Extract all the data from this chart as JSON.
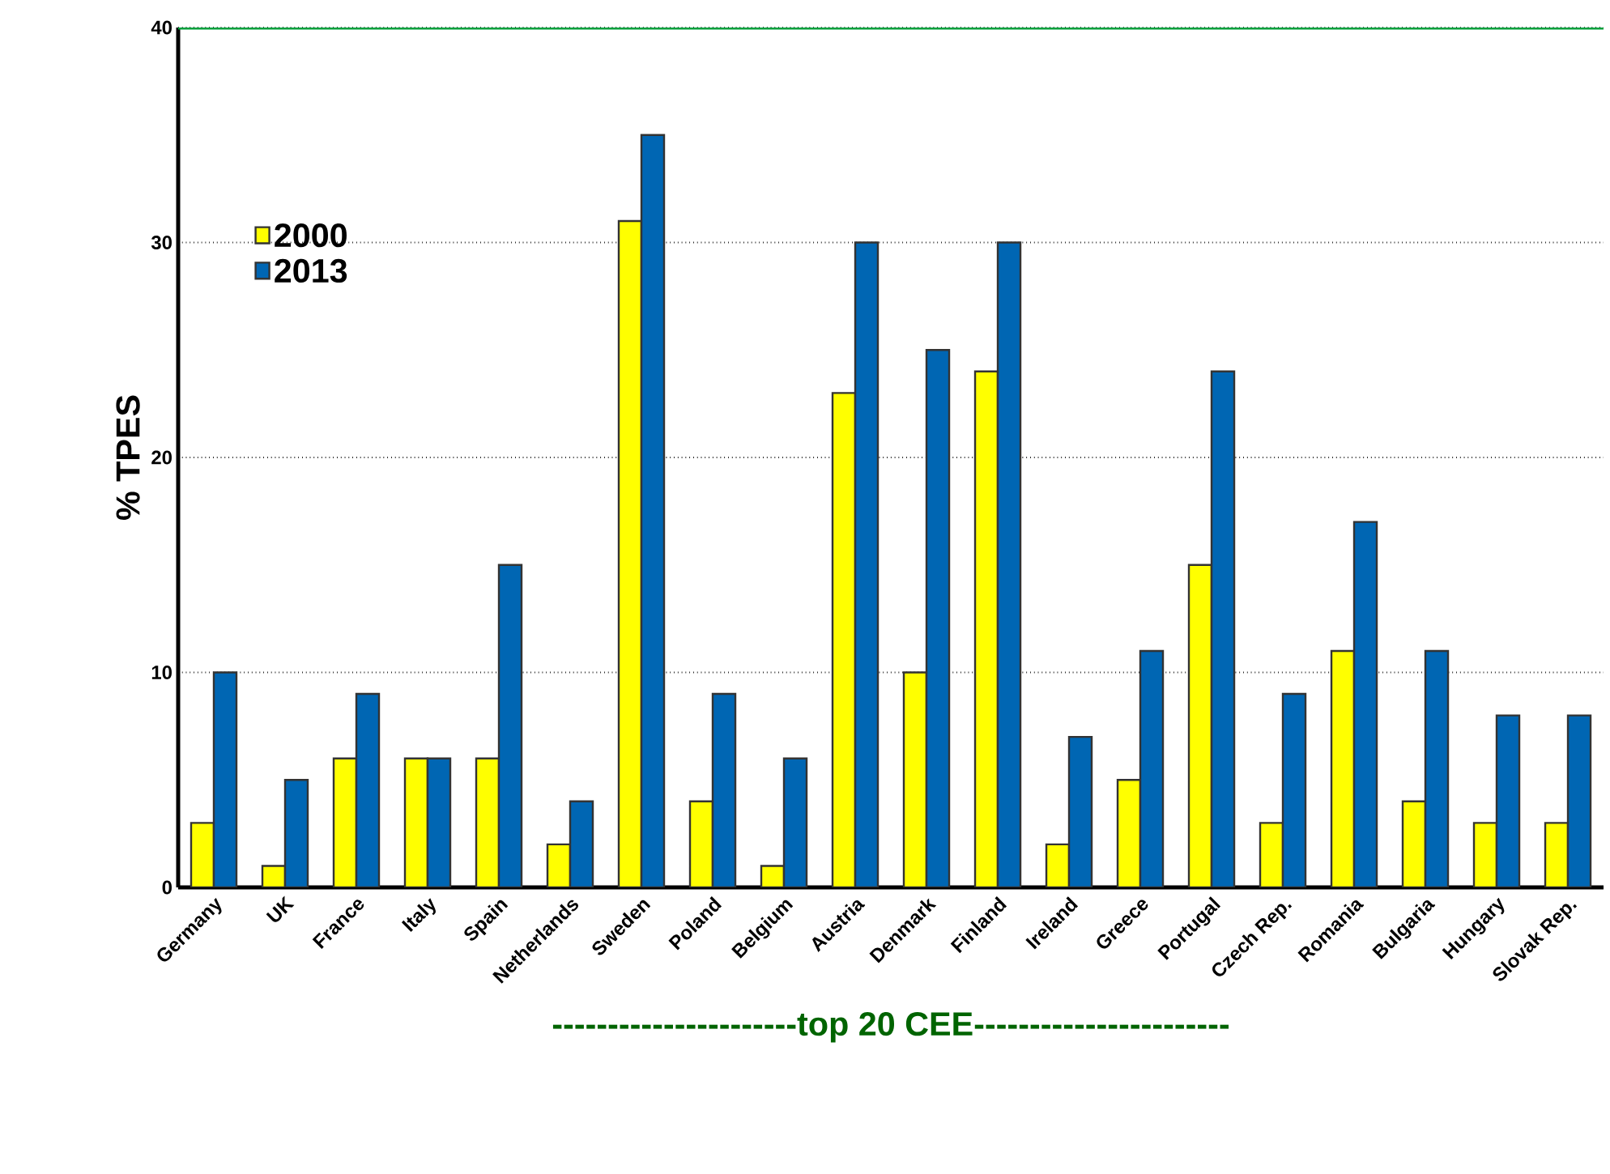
{
  "chart_data": {
    "type": "bar",
    "ylabel": "% TPES",
    "xlabel": "----------------------top 20 CEE-----------------------",
    "categories": [
      "Germany",
      "UK",
      "France",
      "Italy",
      "Spain",
      "Netherlands",
      "Sweden",
      "Poland",
      "Belgium",
      "Austria",
      "Denmark",
      "Finland",
      "Ireland",
      "Greece",
      "Portugal",
      "Czech Rep.",
      "Romania",
      "Bulgaria",
      "Hungary",
      "Slovak Rep."
    ],
    "series": [
      {
        "name": "2000",
        "color": "#ffff00",
        "values": [
          3,
          1,
          6,
          6,
          6,
          2,
          31,
          4,
          1,
          23,
          10,
          24,
          2,
          5,
          15,
          3,
          11,
          4,
          3,
          3
        ]
      },
      {
        "name": "2013",
        "color": "#0066b3",
        "values": [
          10,
          5,
          9,
          6,
          15,
          4,
          35,
          9,
          6,
          30,
          25,
          30,
          7,
          11,
          24,
          9,
          17,
          11,
          8,
          8
        ]
      }
    ],
    "ylim": [
      0,
      40
    ],
    "yticks": [
      0,
      10,
      20,
      30,
      40
    ],
    "grid": "y",
    "legend": "top left",
    "ref_lines": [
      {
        "axis": "y",
        "value": 40,
        "color": "#00a03c"
      }
    ]
  }
}
